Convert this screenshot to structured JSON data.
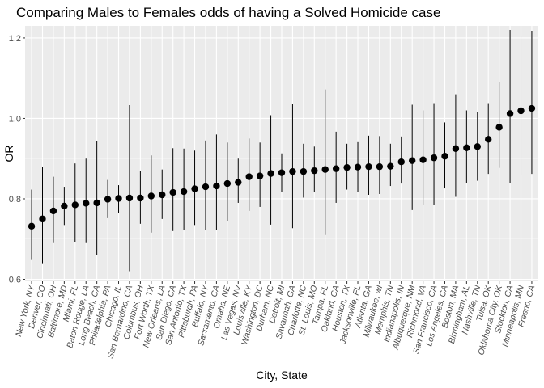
{
  "chart_data": {
    "type": "scatter",
    "title": "Comparing Males to Females odds of having a Solved Homicide case",
    "xlabel": "City, State",
    "ylabel": "OR",
    "ylim": [
      0.595,
      1.23
    ],
    "yticks": [
      0.6,
      0.8,
      1.0,
      1.2
    ],
    "ytick_labels": [
      "0.6",
      "0.8",
      "1.0",
      "1.2"
    ],
    "grid": true,
    "background": "#ebebeb",
    "colors": {
      "panel": "#ebebeb",
      "grid_major": "#ffffff",
      "point": "#000000"
    },
    "categories": [
      "New York, NY",
      "Denver, CO",
      "Cincinnati, OH",
      "Baltimore, MD",
      "Miami, FL",
      "Baton Rouge, LA",
      "Long Beach, CA",
      "Philadelphia, PA",
      "Chicago, IL",
      "San Bernardino, CA",
      "Columbus, OH",
      "Fort Worth, TX",
      "New Orleans, LA",
      "San Diego, CA",
      "San Antonio, TX",
      "Pittsburgh, PA",
      "Buffalo, NY",
      "Sacramento, CA",
      "Omaha, NE",
      "Las Vegas, NV",
      "Louisville, KY",
      "Washington, DC",
      "Durham, NC",
      "Detroit, MI",
      "Savannah, GA",
      "Charlotte, NC",
      "St. Louis, MO",
      "Tampa, FL",
      "Oakland, CA",
      "Houston, TX",
      "Jacksonville, FL",
      "Atlanta, GA",
      "Milwaukee, wI",
      "Memphis, TN",
      "Indianapolis, IN",
      "Albuquerque, NM",
      "Richmond, VA",
      "San Francisco, CA",
      "Los Angeles, CA",
      "Boston, MA",
      "Birmingham, AL",
      "Nashville, TN",
      "Tulsa, OK",
      "Oklahoma City, OK",
      "Stockton, CA",
      "Minneapolis, MN",
      "Fresno, CA"
    ],
    "values": [
      0.732,
      0.75,
      0.77,
      0.782,
      0.785,
      0.789,
      0.79,
      0.799,
      0.801,
      0.802,
      0.802,
      0.807,
      0.81,
      0.816,
      0.818,
      0.825,
      0.83,
      0.832,
      0.838,
      0.841,
      0.855,
      0.857,
      0.863,
      0.865,
      0.868,
      0.868,
      0.87,
      0.873,
      0.875,
      0.878,
      0.879,
      0.88,
      0.88,
      0.881,
      0.892,
      0.895,
      0.897,
      0.902,
      0.906,
      0.925,
      0.927,
      0.93,
      0.948,
      0.978,
      1.012,
      1.019,
      1.025
    ],
    "ci_low": [
      0.648,
      0.64,
      0.69,
      0.735,
      0.693,
      0.69,
      0.66,
      0.752,
      0.765,
      0.62,
      0.738,
      0.716,
      0.75,
      0.72,
      0.722,
      0.735,
      0.722,
      0.722,
      0.745,
      0.79,
      0.77,
      0.78,
      0.736,
      0.816,
      0.727,
      0.803,
      0.816,
      0.71,
      0.79,
      0.823,
      0.817,
      0.81,
      0.812,
      0.832,
      0.838,
      0.772,
      0.786,
      0.784,
      0.826,
      0.805,
      0.84,
      0.845,
      0.862,
      0.877,
      0.84,
      0.86,
      0.862
    ],
    "ci_high": [
      0.823,
      0.88,
      0.855,
      0.83,
      0.888,
      0.9,
      0.943,
      0.847,
      0.834,
      1.033,
      0.87,
      0.908,
      0.873,
      0.926,
      0.925,
      0.92,
      0.945,
      0.96,
      0.94,
      0.9,
      0.95,
      0.94,
      1.008,
      0.913,
      1.035,
      0.937,
      0.93,
      1.072,
      0.967,
      0.937,
      0.941,
      0.957,
      0.956,
      0.937,
      0.955,
      1.034,
      1.02,
      1.036,
      0.99,
      1.06,
      1.02,
      1.017,
      1.036,
      1.09,
      1.22,
      1.204,
      1.218
    ]
  }
}
